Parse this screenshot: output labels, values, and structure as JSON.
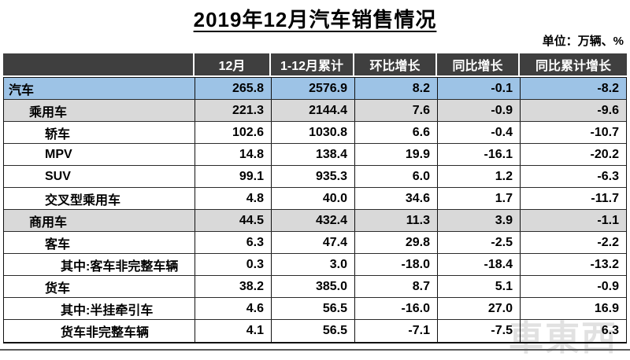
{
  "title": "2019年12月汽车销售情况",
  "unit_note": "单位：万辆、%",
  "watermark": "車東西",
  "colors": {
    "header_bg": "#3f3f3f",
    "header_text": "#ffffff",
    "highlight_blue": "#9dc3e6",
    "highlight_gray": "#d9d9d9",
    "border": "#111111"
  },
  "chart_data": {
    "type": "table",
    "title": "2019年12月汽车销售情况",
    "unit": "万辆、%",
    "columns": [
      "",
      "12月",
      "1-12月累计",
      "环比增长",
      "同比增长",
      "同比累计增长"
    ],
    "rows": [
      {
        "label": "汽车",
        "indent": 0,
        "highlight": "blue",
        "values": [
          "265.8",
          "2576.9",
          "8.2",
          "-0.1",
          "-8.2"
        ]
      },
      {
        "label": "乘用车",
        "indent": 1,
        "highlight": "gray",
        "values": [
          "221.3",
          "2144.4",
          "7.6",
          "-0.9",
          "-9.6"
        ]
      },
      {
        "label": "轿车",
        "indent": 2,
        "highlight": "none",
        "values": [
          "102.6",
          "1030.8",
          "6.6",
          "-0.4",
          "-10.7"
        ]
      },
      {
        "label": "MPV",
        "indent": 2,
        "highlight": "none",
        "values": [
          "14.8",
          "138.4",
          "19.9",
          "-16.1",
          "-20.2"
        ]
      },
      {
        "label": "SUV",
        "indent": 2,
        "highlight": "none",
        "values": [
          "99.1",
          "935.3",
          "6.0",
          "1.2",
          "-6.3"
        ]
      },
      {
        "label": "交叉型乘用车",
        "indent": 2,
        "highlight": "none",
        "values": [
          "4.8",
          "40.0",
          "34.6",
          "1.7",
          "-11.7"
        ]
      },
      {
        "label": "商用车",
        "indent": 1,
        "highlight": "gray",
        "values": [
          "44.5",
          "432.4",
          "11.3",
          "3.9",
          "-1.1"
        ]
      },
      {
        "label": "客车",
        "indent": 2,
        "highlight": "none",
        "values": [
          "6.3",
          "47.4",
          "29.8",
          "-2.5",
          "-2.2"
        ]
      },
      {
        "label": "其中:客车非完整车辆",
        "indent": 3,
        "highlight": "none",
        "values": [
          "0.3",
          "3.0",
          "-18.0",
          "-18.4",
          "-13.2"
        ]
      },
      {
        "label": "货车",
        "indent": 2,
        "highlight": "none",
        "values": [
          "38.2",
          "385.0",
          "8.7",
          "5.1",
          "-0.9"
        ]
      },
      {
        "label": "其中:半挂牵引车",
        "indent": 3,
        "highlight": "none",
        "values": [
          "4.6",
          "56.5",
          "-16.0",
          "27.0",
          "16.9"
        ]
      },
      {
        "label": "货车非完整车辆",
        "indent": 3,
        "highlight": "none",
        "values": [
          "4.1",
          "56.5",
          "-7.1",
          "-7.5",
          "6.3"
        ]
      }
    ]
  }
}
